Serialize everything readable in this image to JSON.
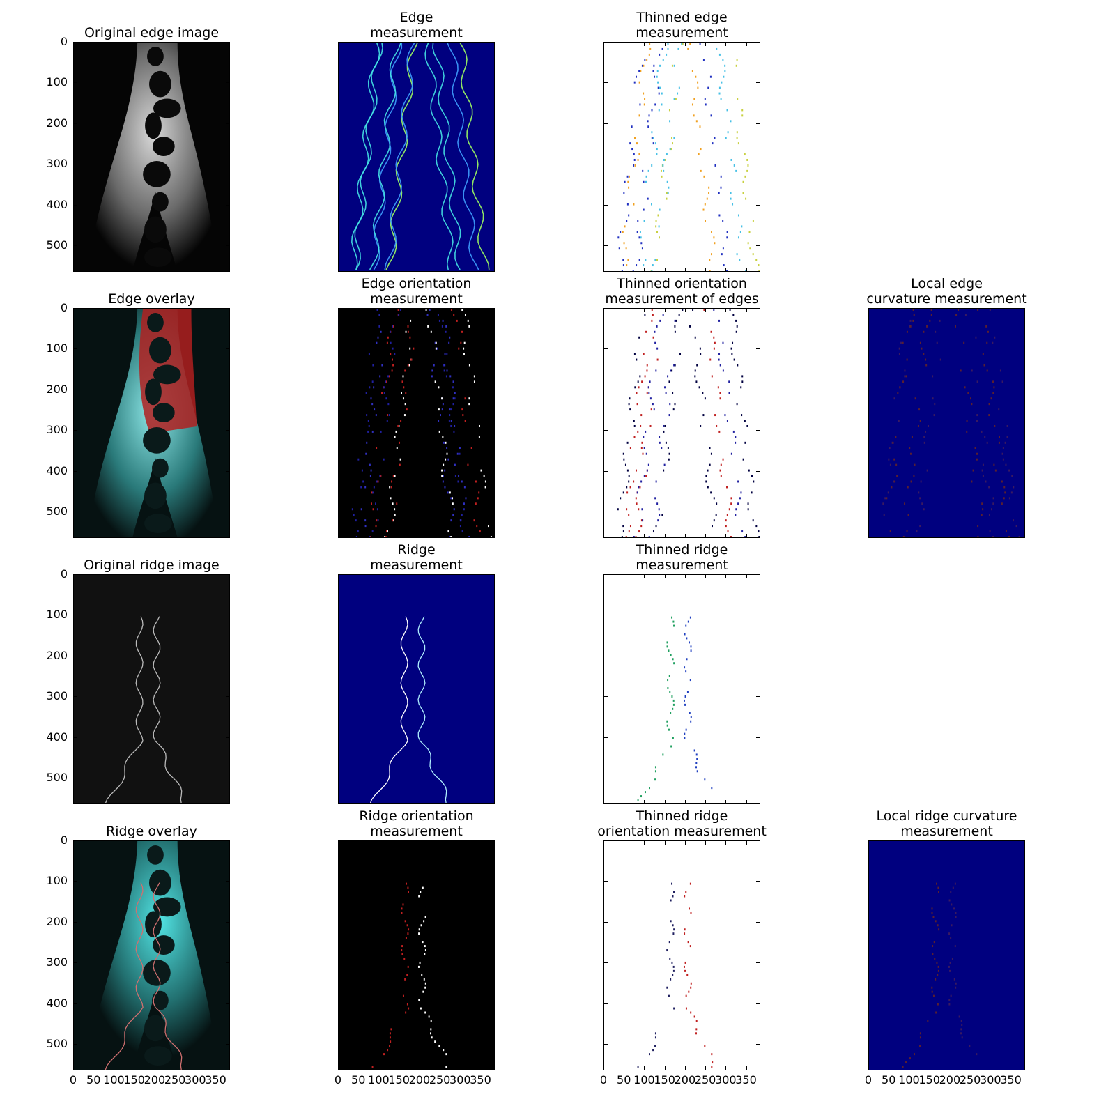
{
  "figure": {
    "panels": [
      {
        "id": "p00",
        "row": 0,
        "col": 0,
        "title": "Original edge image",
        "bg": "#050505",
        "style": "edge-gray"
      },
      {
        "id": "p01",
        "row": 0,
        "col": 1,
        "title": "Edge\nmeasurement",
        "bg": "#00007f",
        "style": "jet-edge"
      },
      {
        "id": "p02",
        "row": 0,
        "col": 2,
        "title": "Thinned edge\nmeasurement",
        "bg": "#ffffff",
        "style": "thin-jet"
      },
      {
        "id": "p10",
        "row": 1,
        "col": 0,
        "title": "Edge overlay",
        "bg": "#061212",
        "style": "overlay-edge"
      },
      {
        "id": "p11",
        "row": 1,
        "col": 1,
        "title": "Edge orientation\nmeasurement",
        "bg": "#000000",
        "style": "orient"
      },
      {
        "id": "p12",
        "row": 1,
        "col": 2,
        "title": "Thinned orientation\nmeasurement of edges",
        "bg": "#ffffff",
        "style": "thin-orient"
      },
      {
        "id": "p13",
        "row": 1,
        "col": 3,
        "title": "Local edge\ncurvature measurement",
        "bg": "#00007f",
        "style": "curv"
      },
      {
        "id": "p20",
        "row": 2,
        "col": 0,
        "title": "Original ridge image",
        "bg": "#111111",
        "style": "ridge-gray"
      },
      {
        "id": "p21",
        "row": 2,
        "col": 1,
        "title": "Ridge\nmeasurement",
        "bg": "#00007f",
        "style": "jet-ridge"
      },
      {
        "id": "p22",
        "row": 2,
        "col": 2,
        "title": "Thinned ridge\nmeasurement",
        "bg": "#ffffff",
        "style": "thin-ridge"
      },
      {
        "id": "p30",
        "row": 3,
        "col": 0,
        "title": "Ridge overlay",
        "bg": "#061212",
        "style": "overlay-ridge"
      },
      {
        "id": "p31",
        "row": 3,
        "col": 1,
        "title": "Ridge orientation\nmeasurement",
        "bg": "#000000",
        "style": "orient-ridge"
      },
      {
        "id": "p32",
        "row": 3,
        "col": 2,
        "title": "Thinned ridge\norientation measurement",
        "bg": "#ffffff",
        "style": "thin-orient-ridge"
      },
      {
        "id": "p33",
        "row": 3,
        "col": 3,
        "title": "Local ridge curvature\nmeasurement",
        "bg": "#00007f",
        "style": "curv-ridge"
      }
    ],
    "y_ticks": [
      "0",
      "100",
      "200",
      "300",
      "400",
      "500"
    ],
    "x_ticks": [
      "0",
      "50",
      "100",
      "150",
      "200",
      "250",
      "300",
      "350"
    ],
    "colors": {
      "jet_dark": "#00007f",
      "cyan": "#46e6e6",
      "red_overlay": "#b02020"
    }
  }
}
